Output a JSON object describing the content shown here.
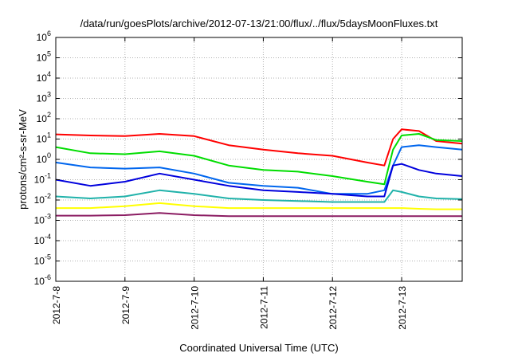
{
  "chart_data": {
    "type": "line",
    "title": "/data/run/goesPlots/archive/2012-07-13/21:00/flux/../flux/5daysMoonFluxes.txt",
    "xlabel": "Coordinated Universal Time (UTC)",
    "ylabel": "protons/cm²-s-sr-MeV",
    "yscale": "log",
    "ylim": [
      1e-06,
      1000000.0
    ],
    "xlim": [
      "2012-07-08T00:00",
      "2012-07-13T21:00"
    ],
    "grid": true,
    "legend": "none",
    "x_ticks": [
      "2012-7-8",
      "2012-7-9",
      "2012-7-10",
      "2012-7-11",
      "2012-7-12",
      "2012-7-13"
    ],
    "y_ticks": [
      {
        "value": 1e-06,
        "mant": "10",
        "exp": "-6"
      },
      {
        "value": 1e-05,
        "mant": "10",
        "exp": "-5"
      },
      {
        "value": 0.0001,
        "mant": "10",
        "exp": "-4"
      },
      {
        "value": 0.001,
        "mant": "10",
        "exp": "-3"
      },
      {
        "value": 0.01,
        "mant": "10",
        "exp": "-2"
      },
      {
        "value": 0.1,
        "mant": "10",
        "exp": "-1"
      },
      {
        "value": 1.0,
        "mant": "10",
        "exp": "0"
      },
      {
        "value": 10.0,
        "mant": "10",
        "exp": "1"
      },
      {
        "value": 100.0,
        "mant": "10",
        "exp": "2"
      },
      {
        "value": 1000.0,
        "mant": "10",
        "exp": "3"
      },
      {
        "value": 10000.0,
        "mant": "10",
        "exp": "4"
      },
      {
        "value": 100000.0,
        "mant": "10",
        "exp": "5"
      },
      {
        "value": 1000000.0,
        "mant": "10",
        "exp": "6"
      }
    ],
    "x": [
      "2012-07-08T00:00",
      "2012-07-08T12:00",
      "2012-07-09T00:00",
      "2012-07-09T12:00",
      "2012-07-10T00:00",
      "2012-07-10T12:00",
      "2012-07-11T00:00",
      "2012-07-11T12:00",
      "2012-07-12T00:00",
      "2012-07-12T12:00",
      "2012-07-12T18:00",
      "2012-07-12T21:00",
      "2012-07-13T00:00",
      "2012-07-13T06:00",
      "2012-07-13T12:00",
      "2012-07-13T21:00"
    ],
    "series": [
      {
        "color": "#ff0000",
        "values": [
          17,
          15,
          14,
          18,
          14,
          5,
          3,
          2,
          1.5,
          0.7,
          0.5,
          10,
          30,
          25,
          8,
          6
        ]
      },
      {
        "color": "#00dd00",
        "values": [
          4,
          2,
          1.8,
          2.5,
          1.5,
          0.5,
          0.3,
          0.25,
          0.15,
          0.08,
          0.06,
          3,
          15,
          18,
          9,
          8
        ]
      },
      {
        "color": "#0066ee",
        "values": [
          0.7,
          0.4,
          0.35,
          0.4,
          0.2,
          0.07,
          0.05,
          0.04,
          0.02,
          0.02,
          0.03,
          0.5,
          4,
          5,
          4,
          3
        ]
      },
      {
        "color": "#0000dd",
        "values": [
          0.1,
          0.05,
          0.08,
          0.2,
          0.1,
          0.05,
          0.03,
          0.025,
          0.02,
          0.015,
          0.015,
          0.5,
          0.6,
          0.3,
          0.2,
          0.15
        ]
      },
      {
        "color": "#20b2aa",
        "values": [
          0.015,
          0.012,
          0.015,
          0.03,
          0.02,
          0.012,
          0.01,
          0.009,
          0.008,
          0.008,
          0.008,
          0.03,
          0.025,
          0.015,
          0.012,
          0.011
        ]
      },
      {
        "color": "#ffff00",
        "values": [
          0.004,
          0.004,
          0.005,
          0.007,
          0.005,
          0.004,
          0.004,
          0.004,
          0.004,
          0.004,
          0.004,
          0.004,
          0.004,
          0.0037,
          0.0035,
          0.0035
        ]
      },
      {
        "color": "#8b1c62",
        "values": [
          0.0017,
          0.0017,
          0.0018,
          0.0023,
          0.0018,
          0.0016,
          0.0016,
          0.0016,
          0.0016,
          0.0016,
          0.0016,
          0.0016,
          0.0016,
          0.0016,
          0.0016,
          0.0016
        ]
      }
    ]
  }
}
